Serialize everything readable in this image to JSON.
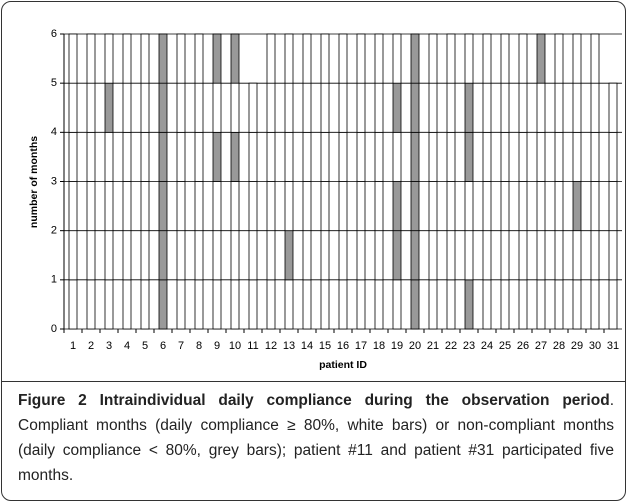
{
  "chart_data": {
    "type": "stacked-months",
    "xlabel": "patient ID",
    "ylabel": "number of months",
    "categories": [
      "1",
      "2",
      "3",
      "4",
      "5",
      "6",
      "7",
      "8",
      "9",
      "10",
      "11",
      "12",
      "13",
      "14",
      "15",
      "16",
      "17",
      "18",
      "19",
      "20",
      "21",
      "22",
      "23",
      "24",
      "25",
      "26",
      "27",
      "28",
      "29",
      "30",
      "31"
    ],
    "values": [
      [
        1,
        1,
        1,
        1,
        1,
        1
      ],
      [
        1,
        1,
        1,
        1,
        1,
        1
      ],
      [
        1,
        1,
        1,
        1,
        1,
        1
      ],
      [
        1,
        1,
        1,
        1,
        1,
        1
      ],
      [
        1,
        1,
        1,
        1,
        1,
        1
      ],
      [
        1,
        1,
        1,
        1,
        1,
        1
      ],
      [
        1,
        1,
        1,
        1,
        1,
        1
      ],
      [
        1,
        1,
        1,
        1,
        1,
        1
      ],
      [
        1,
        1,
        1,
        1,
        1,
        1
      ],
      [
        1,
        1,
        1,
        1,
        1,
        1
      ],
      [
        1,
        1,
        1,
        1,
        1
      ],
      [
        1,
        1,
        1,
        1,
        1,
        1
      ],
      [
        1,
        1,
        1,
        1,
        1,
        1
      ],
      [
        1,
        1,
        1,
        1,
        1,
        1
      ],
      [
        1,
        1,
        1,
        1,
        1,
        1
      ],
      [
        1,
        1,
        1,
        1,
        1,
        1
      ],
      [
        1,
        1,
        1,
        1,
        1,
        1
      ],
      [
        1,
        1,
        1,
        1,
        1,
        1
      ],
      [
        1,
        1,
        1,
        1,
        1,
        1
      ],
      [
        1,
        1,
        1,
        1,
        1,
        1
      ],
      [
        1,
        1,
        1,
        1,
        1,
        1
      ],
      [
        1,
        1,
        1,
        1,
        1,
        1
      ],
      [
        1,
        1,
        1,
        1,
        1,
        1
      ],
      [
        1,
        1,
        1,
        1,
        1,
        1
      ],
      [
        1,
        1,
        1,
        1,
        1,
        1
      ],
      [
        1,
        1,
        1,
        1,
        1,
        1
      ],
      [
        1,
        1,
        1,
        1,
        1,
        1
      ],
      [
        1,
        1,
        1,
        1,
        1,
        1
      ],
      [
        1,
        1,
        1,
        1,
        1,
        1
      ],
      [
        1,
        1,
        1,
        1,
        1,
        1
      ],
      [
        1,
        1,
        1,
        1,
        1
      ]
    ],
    "colors": [
      [
        "#fff",
        "#fff",
        "#fff",
        "#fff",
        "#fff",
        "#fff"
      ],
      [
        "#fff",
        "#fff",
        "#fff",
        "#fff",
        "#fff",
        "#fff"
      ],
      [
        "#fff",
        "#fff",
        "#fff",
        "#fff",
        "#999",
        "#fff"
      ],
      [
        "#fff",
        "#fff",
        "#fff",
        "#fff",
        "#fff",
        "#fff"
      ],
      [
        "#fff",
        "#fff",
        "#fff",
        "#fff",
        "#fff",
        "#fff"
      ],
      [
        "#999",
        "#999",
        "#999",
        "#999",
        "#999",
        "#999"
      ],
      [
        "#fff",
        "#fff",
        "#fff",
        "#fff",
        "#fff",
        "#fff"
      ],
      [
        "#fff",
        "#fff",
        "#fff",
        "#fff",
        "#fff",
        "#fff"
      ],
      [
        "#fff",
        "#fff",
        "#fff",
        "#999",
        "#fff",
        "#999"
      ],
      [
        "#fff",
        "#fff",
        "#fff",
        "#999",
        "#fff",
        "#999"
      ],
      [
        "#fff",
        "#fff",
        "#fff",
        "#fff",
        "#fff"
      ],
      [
        "#fff",
        "#fff",
        "#fff",
        "#fff",
        "#fff",
        "#fff"
      ],
      [
        "#fff",
        "#999",
        "#fff",
        "#fff",
        "#fff",
        "#fff"
      ],
      [
        "#fff",
        "#fff",
        "#fff",
        "#fff",
        "#fff",
        "#fff"
      ],
      [
        "#fff",
        "#fff",
        "#fff",
        "#fff",
        "#fff",
        "#fff"
      ],
      [
        "#fff",
        "#fff",
        "#fff",
        "#fff",
        "#fff",
        "#fff"
      ],
      [
        "#fff",
        "#fff",
        "#fff",
        "#fff",
        "#fff",
        "#fff"
      ],
      [
        "#fff",
        "#fff",
        "#fff",
        "#fff",
        "#fff",
        "#fff"
      ],
      [
        "#fff",
        "#999",
        "#999",
        "#fff",
        "#999",
        "#fff"
      ],
      [
        "#999",
        "#999",
        "#999",
        "#999",
        "#999",
        "#999"
      ],
      [
        "#fff",
        "#fff",
        "#fff",
        "#fff",
        "#fff",
        "#fff"
      ],
      [
        "#fff",
        "#fff",
        "#fff",
        "#fff",
        "#fff",
        "#fff"
      ],
      [
        "#999",
        "#fff",
        "#fff",
        "#999",
        "#999",
        "#fff"
      ],
      [
        "#fff",
        "#fff",
        "#fff",
        "#fff",
        "#fff",
        "#fff"
      ],
      [
        "#fff",
        "#fff",
        "#fff",
        "#fff",
        "#fff",
        "#fff"
      ],
      [
        "#fff",
        "#fff",
        "#fff",
        "#fff",
        "#fff",
        "#fff"
      ],
      [
        "#fff",
        "#fff",
        "#fff",
        "#fff",
        "#fff",
        "#999"
      ],
      [
        "#fff",
        "#fff",
        "#fff",
        "#fff",
        "#fff",
        "#fff"
      ],
      [
        "#fff",
        "#fff",
        "#999",
        "#fff",
        "#fff",
        "#fff"
      ],
      [
        "#fff",
        "#fff",
        "#fff",
        "#fff",
        "#fff",
        "#fff"
      ],
      [
        "#fff",
        "#fff",
        "#fff",
        "#fff",
        "#fff"
      ]
    ],
    "ylim": [
      0,
      6
    ],
    "yticks": [
      0,
      1,
      2,
      3,
      4,
      5,
      6
    ],
    "grid": true
  },
  "caption": {
    "label": "Figure 2",
    "title": "Intraindividual daily compliance during the observation period",
    "text": ". Compliant months (daily compliance ≥ 80%, white bars) or non-compliant months (daily compliance < 80%, grey bars); patient #11 and patient #31 participated five months."
  }
}
